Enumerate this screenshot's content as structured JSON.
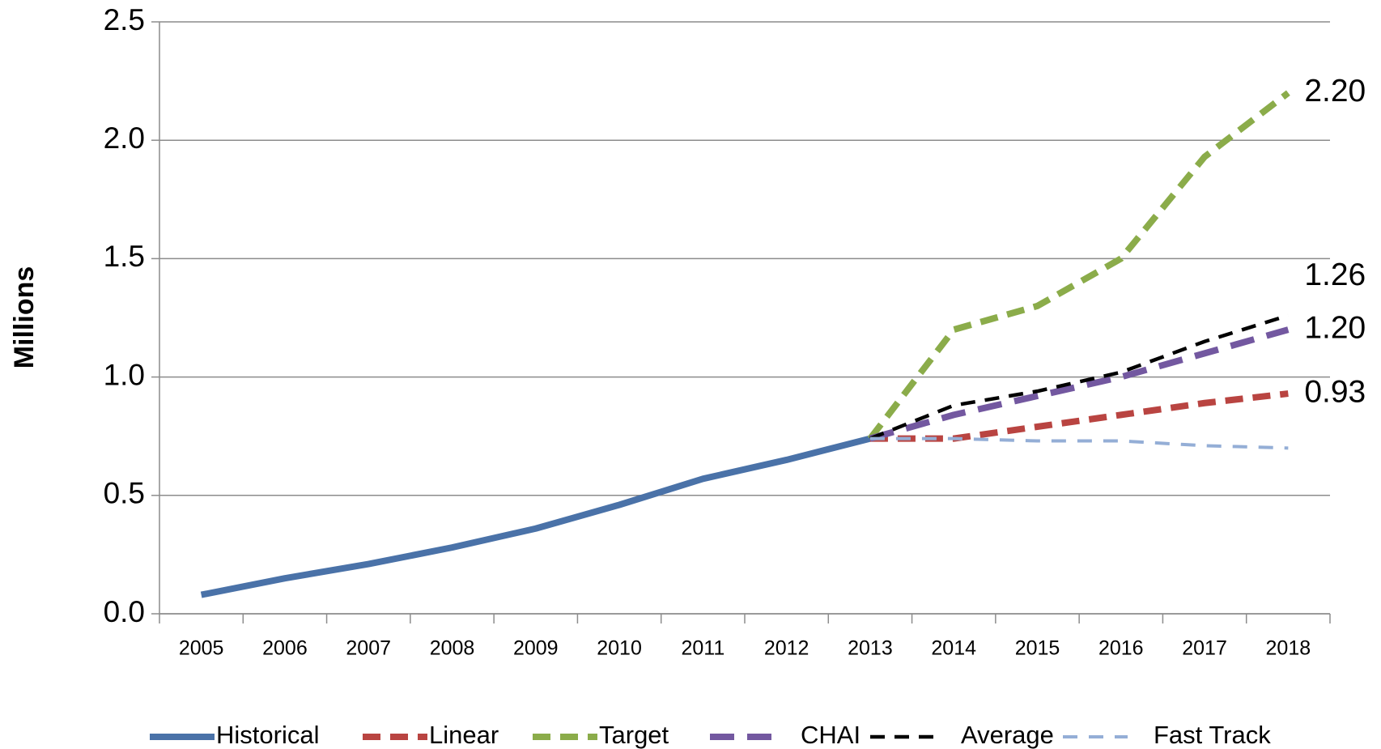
{
  "chart_data": {
    "type": "line",
    "y_label": "Millions",
    "categories": [
      "2005",
      "2006",
      "2007",
      "2008",
      "2009",
      "2010",
      "2011",
      "2012",
      "2013",
      "2014",
      "2015",
      "2016",
      "2017",
      "2018"
    ],
    "ylim": [
      0,
      2.5
    ],
    "yticks": [
      {
        "value": 0,
        "label": "0.0"
      },
      {
        "value": 0.5,
        "label": "0.5"
      },
      {
        "value": 1,
        "label": "1.0"
      },
      {
        "value": 1.5,
        "label": "1.5"
      },
      {
        "value": 2,
        "label": "2.0"
      },
      {
        "value": 2.5,
        "label": "2.5"
      }
    ],
    "grid": true,
    "legend": "bottom",
    "series": [
      {
        "name": "Historical",
        "color": "#4a72a8",
        "values": [
          0.08,
          0.15,
          0.21,
          0.28,
          0.36,
          0.46,
          0.57,
          0.65,
          0.74,
          null,
          null,
          null,
          null,
          null
        ]
      },
      {
        "name": "Linear",
        "color": "#b94441",
        "values": [
          null,
          null,
          null,
          null,
          null,
          null,
          null,
          null,
          0.74,
          0.74,
          0.79,
          0.84,
          0.89,
          0.93
        ],
        "value_labels": [
          null,
          null,
          null,
          null,
          null,
          null,
          null,
          null,
          null,
          null,
          null,
          null,
          null,
          "0.93"
        ]
      },
      {
        "name": "Target",
        "color": "#8bac4a",
        "values": [
          null,
          null,
          null,
          null,
          null,
          null,
          null,
          null,
          0.74,
          1.2,
          1.3,
          1.5,
          1.93,
          2.2
        ],
        "value_labels": [
          null,
          null,
          null,
          null,
          null,
          null,
          null,
          null,
          null,
          null,
          null,
          null,
          null,
          "2.20"
        ]
      },
      {
        "name": "CHAI",
        "color": "#7358a0",
        "values": [
          null,
          null,
          null,
          null,
          null,
          null,
          null,
          null,
          0.74,
          0.84,
          0.92,
          1.0,
          1.1,
          1.2
        ],
        "value_labels": [
          null,
          null,
          null,
          null,
          null,
          null,
          null,
          null,
          null,
          null,
          null,
          null,
          null,
          "1.20"
        ]
      },
      {
        "name": "Average",
        "color": "#000000",
        "values": [
          null,
          null,
          null,
          null,
          null,
          null,
          null,
          null,
          0.74,
          0.88,
          0.94,
          1.02,
          1.15,
          1.26
        ],
        "value_labels": [
          null,
          null,
          null,
          null,
          null,
          null,
          null,
          null,
          null,
          null,
          null,
          null,
          null,
          "1.26"
        ]
      },
      {
        "name": "Fast Track",
        "color": "#94aed6",
        "values": [
          null,
          null,
          null,
          null,
          null,
          null,
          null,
          null,
          0.74,
          0.74,
          0.73,
          0.73,
          0.71,
          0.7
        ]
      }
    ]
  }
}
